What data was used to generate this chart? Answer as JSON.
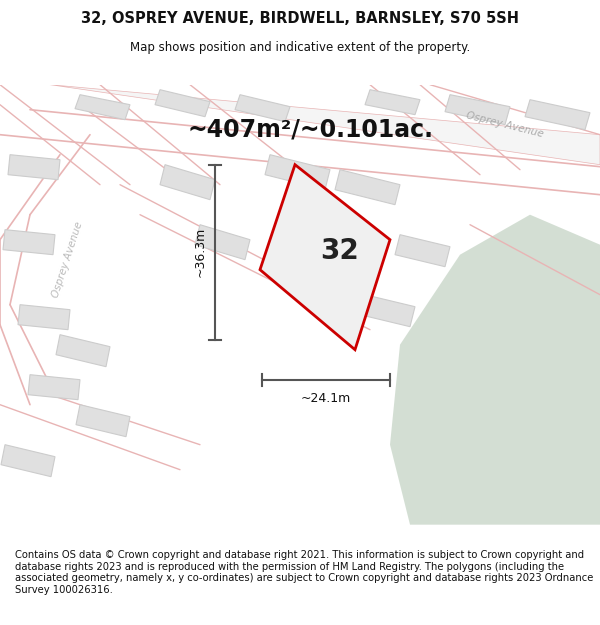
{
  "title": "32, OSPREY AVENUE, BIRDWELL, BARNSLEY, S70 5SH",
  "subtitle": "Map shows position and indicative extent of the property.",
  "area_label": "~407m²/~0.101ac.",
  "plot_number": "32",
  "dim_width": "~24.1m",
  "dim_height": "~36.3m",
  "title_fontsize": 10.5,
  "subtitle_fontsize": 8.5,
  "area_fontsize": 17,
  "plot_number_fontsize": 20,
  "dim_fontsize": 9,
  "bg_map_color": "#f8f6f4",
  "bg_color": "#ffffff",
  "road_line_color": "#e8b4b4",
  "building_color": "#e0e0e0",
  "building_outline": "#cccccc",
  "green_area_color": "#ccd9cc",
  "plot_fill": "#f0f0f0",
  "plot_outline": "#cc0000",
  "dim_line_color": "#555555",
  "street_label": "Osprey Avenue",
  "footer_text": "Contains OS data © Crown copyright and database right 2021. This information is subject to Crown copyright and database rights 2023 and is reproduced with the permission of HM Land Registry. The polygons (including the associated geometry, namely x, y co-ordinates) are subject to Crown copyright and database rights 2023 Ordnance Survey 100026316.",
  "footer_fontsize": 7.2,
  "map_xlim": [
    0,
    600
  ],
  "map_ylim": [
    0,
    440
  ]
}
